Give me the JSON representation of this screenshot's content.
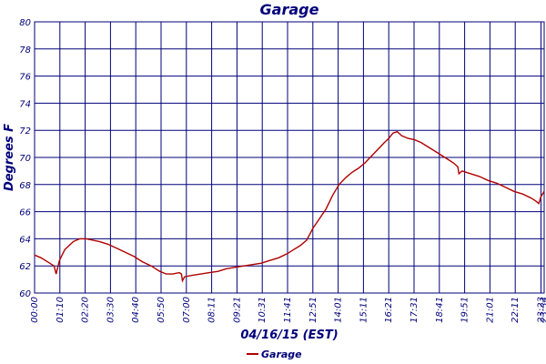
{
  "chart_data": {
    "type": "line",
    "title": "Garage",
    "xlabel": "04/16/15 (EST)",
    "ylabel": "Degrees F",
    "ylim": [
      60,
      80
    ],
    "yticks": [
      60,
      62,
      64,
      66,
      68,
      70,
      72,
      74,
      76,
      78,
      80
    ],
    "xticks": [
      "00:00",
      "01:10",
      "02:20",
      "03:30",
      "04:40",
      "05:50",
      "07:00",
      "08:11",
      "09:21",
      "10:31",
      "11:41",
      "12:51",
      "14:01",
      "15:11",
      "16:21",
      "17:31",
      "18:41",
      "19:51",
      "21:01",
      "22:11",
      "23:23",
      "23:34"
    ],
    "grid": true,
    "legend": "bottom",
    "colors": {
      "series": "#b00000",
      "axis": "#00007a"
    },
    "series": [
      {
        "name": "Garage",
        "x": [
          0,
          0.3,
          0.6,
          0.9,
          1.0,
          1.15,
          1.4,
          1.8,
          2.1,
          2.4,
          2.7,
          3.0,
          3.4,
          3.8,
          4.2,
          4.6,
          5.0,
          5.4,
          5.8,
          6.1,
          6.4,
          6.7,
          6.8,
          6.85,
          6.95,
          7.3,
          7.7,
          8.1,
          8.5,
          8.9,
          9.3,
          9.7,
          10.1,
          10.5,
          10.9,
          11.3,
          11.7,
          12.0,
          12.3,
          12.6,
          12.9,
          13.2,
          13.5,
          13.8,
          14.1,
          14.4,
          14.7,
          15.0,
          15.3,
          15.6,
          15.9,
          16.2,
          16.4,
          16.6,
          16.8,
          17.0,
          17.3,
          17.6,
          17.9,
          18.2,
          18.5,
          18.8,
          19.1,
          19.4,
          19.6,
          19.65,
          19.8,
          20.2,
          20.6,
          21.0,
          21.4,
          21.8,
          22.2,
          22.6,
          23.0,
          23.2,
          23.35,
          23.45,
          23.6
        ],
        "values": [
          62.8,
          62.6,
          62.3,
          62.0,
          61.4,
          62.4,
          63.2,
          63.8,
          64.0,
          64.0,
          63.9,
          63.8,
          63.6,
          63.3,
          63.0,
          62.7,
          62.3,
          62.0,
          61.6,
          61.4,
          61.4,
          61.5,
          61.4,
          60.9,
          61.2,
          61.3,
          61.4,
          61.5,
          61.6,
          61.8,
          61.9,
          62.0,
          62.1,
          62.2,
          62.4,
          62.6,
          62.9,
          63.2,
          63.5,
          63.9,
          64.8,
          65.5,
          66.2,
          67.2,
          68.0,
          68.5,
          68.9,
          69.2,
          69.6,
          70.1,
          70.6,
          71.1,
          71.4,
          71.8,
          71.9,
          71.6,
          71.4,
          71.3,
          71.1,
          70.8,
          70.5,
          70.2,
          69.9,
          69.6,
          69.3,
          68.8,
          69.0,
          68.8,
          68.6,
          68.3,
          68.1,
          67.8,
          67.5,
          67.3,
          67.0,
          66.8,
          66.6,
          67.1,
          67.5
        ]
      }
    ]
  }
}
